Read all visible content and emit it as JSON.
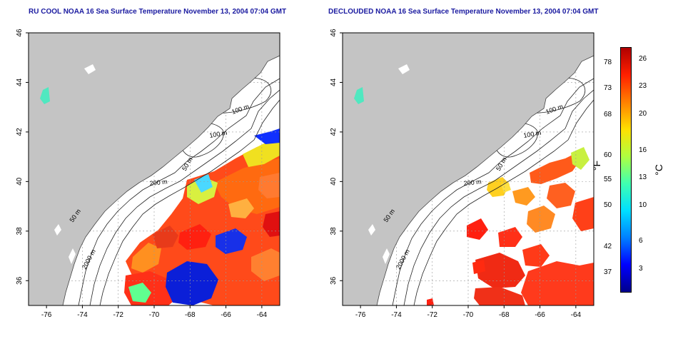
{
  "maps": [
    {
      "title": "RU COOL NOAA 16 Sea Surface Temperature November 13, 2004 07:04 GMT",
      "variant": "raw",
      "lat_labels": [
        "46",
        "44",
        "42",
        "40",
        "38",
        "36"
      ],
      "lon_labels": [
        "-76",
        "-74",
        "-72",
        "-70",
        "-68",
        "-66",
        "-64"
      ],
      "contour_labels": [
        "100 m",
        "100 m",
        "50 m",
        "200 m",
        "50 m",
        "2000 m"
      ]
    },
    {
      "title": "DECLOUDED NOAA 16 Sea Surface Temperature November 13, 2004 07:04 GMT",
      "variant": "declouded",
      "lat_labels": [
        "46",
        "44",
        "42",
        "40",
        "38",
        "36"
      ],
      "lon_labels": [
        "-76",
        "-74",
        "-72",
        "-70",
        "-68",
        "-66",
        "-64"
      ],
      "contour_labels": [
        "100 m",
        "100 m",
        "50 m",
        "200 m",
        "50 m",
        "2000 m"
      ]
    }
  ],
  "colorbar": {
    "f_unit": "°F",
    "c_unit": "°C",
    "f_ticks": [
      "78",
      "73",
      "68",
      "60",
      "55",
      "50",
      "42",
      "37"
    ],
    "c_ticks": [
      "26",
      "23",
      "20",
      "16",
      "13",
      "10",
      "6",
      "3"
    ],
    "colors": [
      "#00008b",
      "#0000ff",
      "#0080ff",
      "#00e0ff",
      "#40ffb0",
      "#b0ff40",
      "#ffe000",
      "#ff8000",
      "#ff2000",
      "#b00000"
    ]
  }
}
